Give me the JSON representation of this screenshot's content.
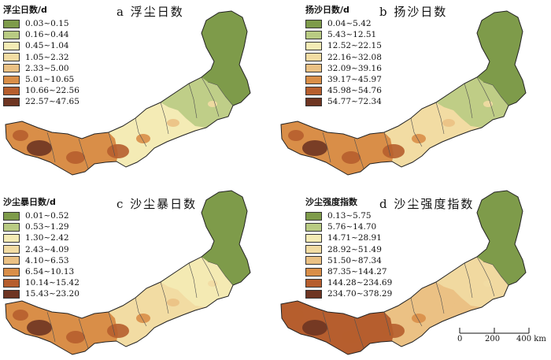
{
  "colors": {
    "c1": "#7e9b4a",
    "c2": "#b9cb83",
    "c3": "#f4ebb5",
    "c4": "#f2dca3",
    "c5": "#ebc184",
    "c6": "#d98e48",
    "c7": "#b65e2e",
    "c8": "#6e3522",
    "border": "#505050"
  },
  "panels": [
    {
      "id": "a",
      "title": "a 浮尘日数",
      "legend_title": "浮尘日数/d",
      "classes": [
        "0.03~0.15",
        "0.16~0.44",
        "0.45~1.04",
        "1.05~2.32",
        "2.33~5.00",
        "5.01~10.65",
        "10.66~22.56",
        "22.57~47.65"
      ],
      "base": {
        "east": "c2",
        "north": "c1",
        "mid": "c3",
        "west": "c6"
      }
    },
    {
      "id": "b",
      "title": "b 扬沙日数",
      "legend_title": "扬沙日数/d",
      "classes": [
        "0.04~5.42",
        "5.43~12.51",
        "12.52~22.15",
        "22.16~32.08",
        "32.09~39.16",
        "39.17~45.97",
        "45.98~54.76",
        "54.77~72.34"
      ],
      "base": {
        "east": "c2",
        "north": "c1",
        "mid": "c4",
        "west": "c6"
      }
    },
    {
      "id": "c",
      "title": "c 沙尘暴日数",
      "legend_title": "沙尘暴日数/d",
      "classes": [
        "0.01~0.52",
        "0.53~1.29",
        "1.30~2.42",
        "2.43~4.09",
        "4.10~6.53",
        "6.54~10.13",
        "10.14~15.42",
        "15.43~23.20"
      ],
      "base": {
        "east": "c3",
        "north": "c1",
        "mid": "c4",
        "west": "c6"
      }
    },
    {
      "id": "d",
      "title": "d 沙尘强度指数",
      "legend_title": "沙尘强度指数",
      "classes": [
        "0.13~5.75",
        "5.76~14.70",
        "14.71~28.91",
        "28.92~51.49",
        "51.50~87.34",
        "87.35~144.27",
        "144.28~234.69",
        "234.70~378.29"
      ],
      "base": {
        "east": "c4",
        "north": "c1",
        "mid": "c5",
        "west": "c7"
      }
    }
  ],
  "scalebar": {
    "labels": [
      "0",
      "200",
      "400 km"
    ]
  }
}
